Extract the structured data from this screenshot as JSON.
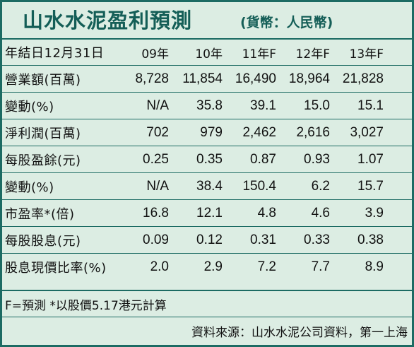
{
  "title": {
    "main": "山水水泥盈利預測",
    "sub": "(貨幣：人民幣)"
  },
  "table": {
    "header": {
      "label": "年結日12月31日",
      "years": [
        "09年",
        "10年",
        "11年F",
        "12年F",
        "13年F"
      ]
    },
    "rows": [
      {
        "label": "營業額(百萬)",
        "values": [
          "8,728",
          "11,854",
          "16,490",
          "18,964",
          "21,828"
        ]
      },
      {
        "label": "變動(%)",
        "values": [
          "N/A",
          "35.8",
          "39.1",
          "15.0",
          "15.1"
        ]
      },
      {
        "label": "淨利潤(百萬)",
        "values": [
          "702",
          "979",
          "2,462",
          "2,616",
          "3,027"
        ]
      },
      {
        "label": "每股盈餘(元)",
        "values": [
          "0.25",
          "0.35",
          "0.87",
          "0.93",
          "1.07"
        ]
      },
      {
        "label": "變動(%)",
        "values": [
          "N/A",
          "38.4",
          "150.4",
          "6.2",
          "15.7"
        ]
      },
      {
        "label": "市盈率*(倍)",
        "values": [
          "16.8",
          "12.1",
          "4.8",
          "4.6",
          "3.9"
        ]
      },
      {
        "label": "每股股息(元)",
        "values": [
          "0.09",
          "0.12",
          "0.31",
          "0.33",
          "0.38"
        ]
      },
      {
        "label": "股息現價比率(%)",
        "values": [
          "2.0",
          "2.9",
          "7.2",
          "7.7",
          "8.9"
        ]
      }
    ]
  },
  "footnote": "F=預測 *以股價5.17港元計算",
  "source": "資料來源：山水水泥公司資料，第一上海",
  "colors": {
    "accent": "#1c6b63",
    "title": "#145e57",
    "background": "#dcede3"
  }
}
